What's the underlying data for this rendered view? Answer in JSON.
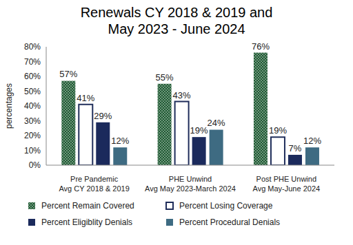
{
  "chart_data": {
    "type": "bar",
    "title": "Renewals CY 2018 & 2019 and\nMay 2023 - June 2024",
    "categories": [
      "Pre Pandemic\nAvg CY 2018 & 2019",
      "PHE Unwind\nAvg May 2023-March 2024",
      "Post PHE Unwind\nAvg May-June 2024"
    ],
    "ylabel": "percentages",
    "ylim": [
      0,
      80
    ],
    "yticks": [
      {
        "value": 0,
        "label": "0%"
      },
      {
        "value": 10,
        "label": "10%"
      },
      {
        "value": 20,
        "label": "20%"
      },
      {
        "value": 30,
        "label": "30%"
      },
      {
        "value": 40,
        "label": "40%"
      },
      {
        "value": 50,
        "label": "50%"
      },
      {
        "value": 60,
        "label": "60%"
      },
      {
        "value": 70,
        "label": "70%"
      },
      {
        "value": 80,
        "label": "80%"
      }
    ],
    "grid": false,
    "data_labels": true,
    "legend": "bottom",
    "series": [
      {
        "name": "Percent Remain Covered",
        "color": "#1e5a32",
        "values": [
          57,
          55,
          76
        ],
        "value_labels": [
          "57%",
          "55%",
          "76%"
        ]
      },
      {
        "name": "Percent Losing Coverage",
        "color": "#1f2d5a",
        "values": [
          41,
          43,
          19
        ],
        "value_labels": [
          "41%",
          "43%",
          "19%"
        ]
      },
      {
        "name": "Percent Eligiblity Denials",
        "color": "#1b2a5c",
        "values": [
          29,
          19,
          7
        ],
        "value_labels": [
          "29%",
          "19%",
          "7%"
        ]
      },
      {
        "name": "Percent Procedural Denials",
        "color": "#3e6b82",
        "values": [
          12,
          24,
          12
        ],
        "value_labels": [
          "12%",
          "24%",
          "12%"
        ]
      }
    ]
  }
}
